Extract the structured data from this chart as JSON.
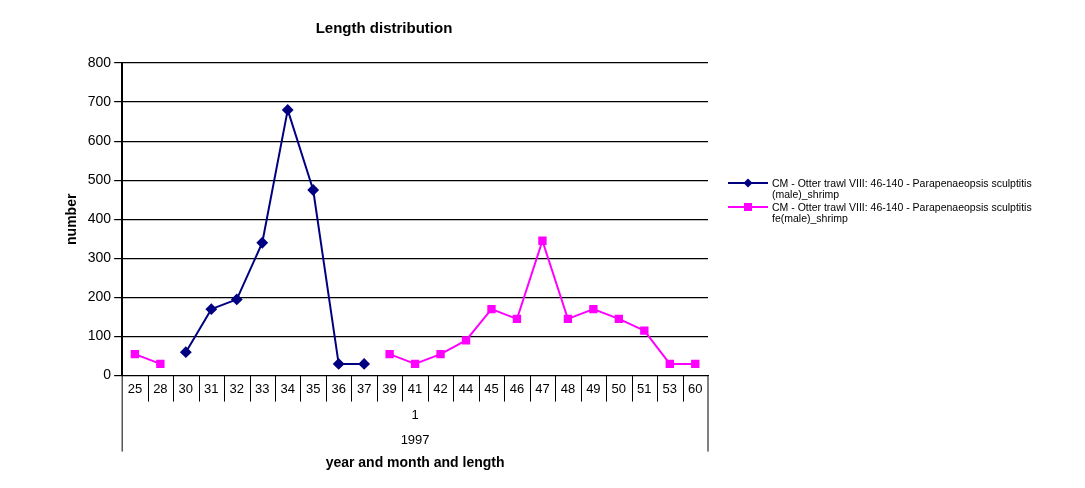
{
  "chart_data": {
    "type": "line",
    "title": "Length distribution",
    "xlabel": "year and month and length",
    "ylabel": "number",
    "categories": [
      "25",
      "28",
      "30",
      "31",
      "32",
      "33",
      "34",
      "35",
      "36",
      "37",
      "39",
      "41",
      "42",
      "44",
      "45",
      "46",
      "47",
      "48",
      "49",
      "50",
      "51",
      "53",
      "60"
    ],
    "series": [
      {
        "name": "CM - Otter trawl VIII: 46-140 - Parapenaeopsis sculptitis (male)_shrimp",
        "color": "#000080",
        "marker": "diamond",
        "values": [
          null,
          null,
          60,
          170,
          195,
          340,
          680,
          475,
          30,
          30,
          null,
          null,
          null,
          null,
          null,
          null,
          null,
          null,
          null,
          null,
          null,
          null,
          null
        ]
      },
      {
        "name": "CM - Otter trawl VIII: 46-140 - Parapenaeopsis sculptitis fe(male)_shrimp",
        "color": "#ff00ff",
        "marker": "square",
        "values": [
          55,
          30,
          null,
          null,
          null,
          null,
          null,
          null,
          null,
          null,
          55,
          30,
          55,
          90,
          170,
          145,
          345,
          145,
          170,
          145,
          115,
          30,
          30
        ]
      }
    ],
    "ylim": [
      0,
      800
    ],
    "yticks": [
      0,
      100,
      200,
      300,
      400,
      500,
      600,
      700,
      800
    ],
    "grid": "y",
    "legend": "right",
    "annotations": [
      "1",
      "1997"
    ]
  }
}
